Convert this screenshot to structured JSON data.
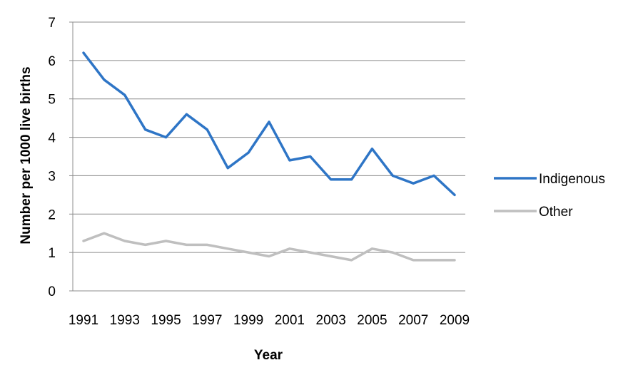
{
  "chart_data": {
    "type": "line",
    "title": "",
    "xlabel": "Year",
    "ylabel": "Number per 1000 live births",
    "ylim": [
      0,
      7
    ],
    "yticks": [
      0,
      1,
      2,
      3,
      4,
      5,
      6,
      7
    ],
    "x": [
      1991,
      1992,
      1993,
      1994,
      1995,
      1996,
      1997,
      1998,
      1999,
      2000,
      2001,
      2002,
      2003,
      2004,
      2005,
      2006,
      2007,
      2008,
      2009
    ],
    "xtick_labels": [
      "1991",
      "1993",
      "1995",
      "1997",
      "1999",
      "2001",
      "2003",
      "2005",
      "2007",
      "2009"
    ],
    "grid": "horizontal",
    "legend_position": "right",
    "series": [
      {
        "name": "Indigenous",
        "color": "#2E75C6",
        "values": [
          6.2,
          5.5,
          5.1,
          4.2,
          4.0,
          4.6,
          4.2,
          3.2,
          3.6,
          4.4,
          3.4,
          3.5,
          2.9,
          2.9,
          3.7,
          3.0,
          2.8,
          3.0,
          2.5
        ]
      },
      {
        "name": "Other",
        "color": "#BFBFBF",
        "values": [
          1.3,
          1.5,
          1.3,
          1.2,
          1.3,
          1.2,
          1.2,
          1.1,
          1.0,
          0.9,
          1.1,
          1.0,
          0.9,
          0.8,
          1.1,
          1.0,
          0.8,
          0.8,
          0.8
        ]
      }
    ]
  }
}
